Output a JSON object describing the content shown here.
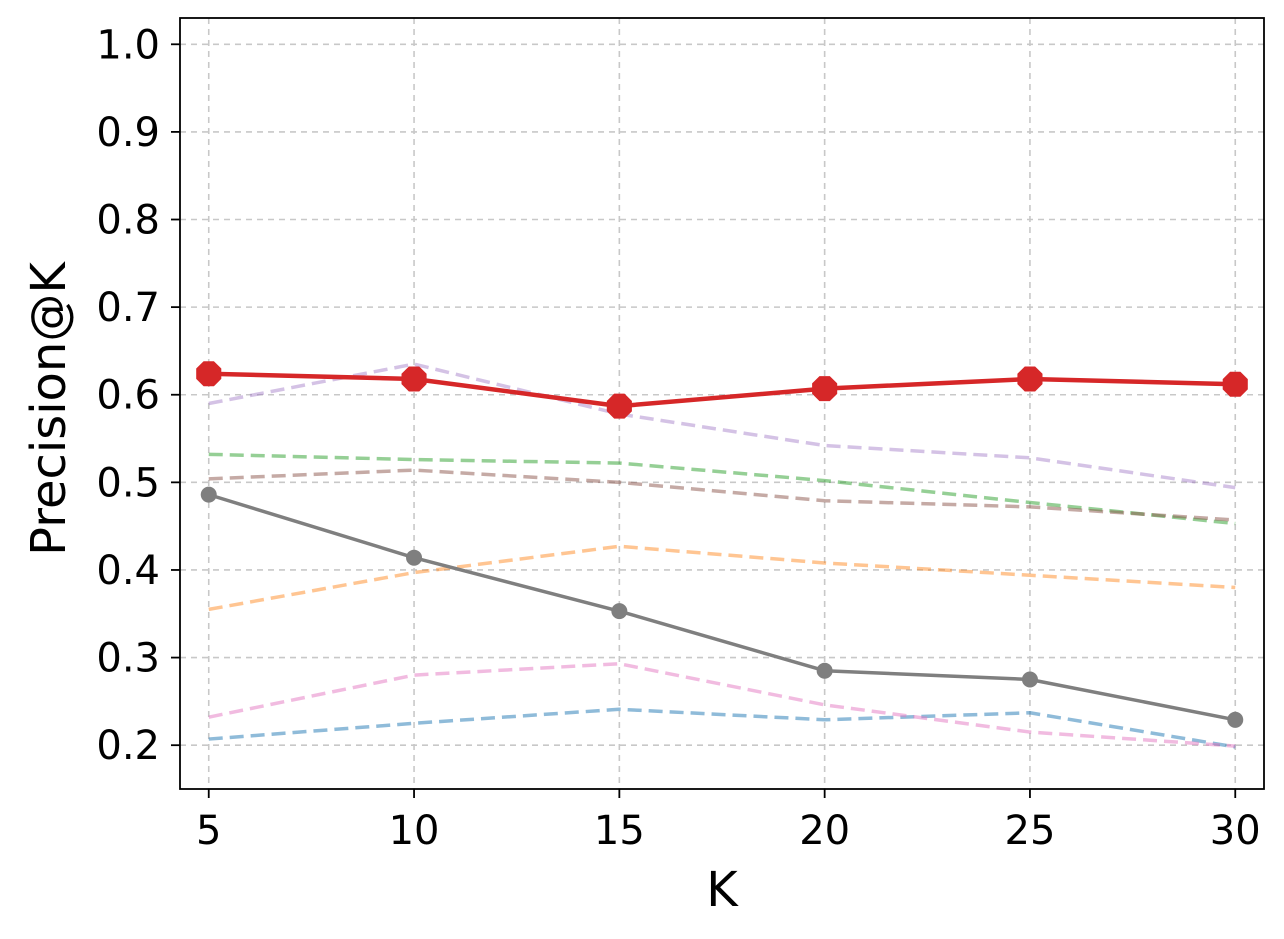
{
  "chart_data": {
    "type": "line",
    "title": "",
    "xlabel": "K",
    "ylabel": "Precision@K",
    "x": [
      5,
      10,
      15,
      20,
      25,
      30
    ],
    "xlim": [
      4.3,
      30.7
    ],
    "ylim": [
      0.15,
      1.03
    ],
    "xticks": [
      "5",
      "10",
      "15",
      "20",
      "25",
      "30"
    ],
    "yticks": [
      "0.2",
      "0.3",
      "0.4",
      "0.5",
      "0.6",
      "0.7",
      "0.8",
      "0.9",
      "1.0"
    ],
    "grid": true,
    "legend": "none",
    "series": [
      {
        "values": [
          0.207,
          0.225,
          0.241,
          0.229,
          0.237,
          0.198
        ],
        "color": "#1f77b4",
        "style": "dashed",
        "opacity": 0.5
      },
      {
        "values": [
          0.355,
          0.397,
          0.427,
          0.408,
          0.394,
          0.38
        ],
        "color": "#ff7f0e",
        "style": "dashed",
        "opacity": 0.45
      },
      {
        "values": [
          0.532,
          0.526,
          0.522,
          0.502,
          0.477,
          0.453
        ],
        "color": "#2ca02c",
        "style": "dashed",
        "opacity": 0.5
      },
      {
        "values": [
          0.59,
          0.635,
          0.578,
          0.542,
          0.528,
          0.494
        ],
        "color": "#9467bd",
        "style": "dashed",
        "opacity": 0.4
      },
      {
        "values": [
          0.504,
          0.514,
          0.5,
          0.479,
          0.472,
          0.457
        ],
        "color": "#8c564b",
        "style": "dashed",
        "opacity": 0.5
      },
      {
        "values": [
          0.232,
          0.28,
          0.293,
          0.246,
          0.215,
          0.199
        ],
        "color": "#e377c2",
        "style": "dashed",
        "opacity": 0.5
      },
      {
        "values": [
          0.486,
          0.414,
          0.353,
          0.285,
          0.275,
          0.229
        ],
        "color": "#7f7f7f",
        "style": "solid",
        "marker": "circle"
      },
      {
        "values": [
          0.624,
          0.618,
          0.587,
          0.607,
          0.618,
          0.612
        ],
        "color": "#d62728",
        "style": "solid",
        "marker": "octagon"
      }
    ]
  }
}
